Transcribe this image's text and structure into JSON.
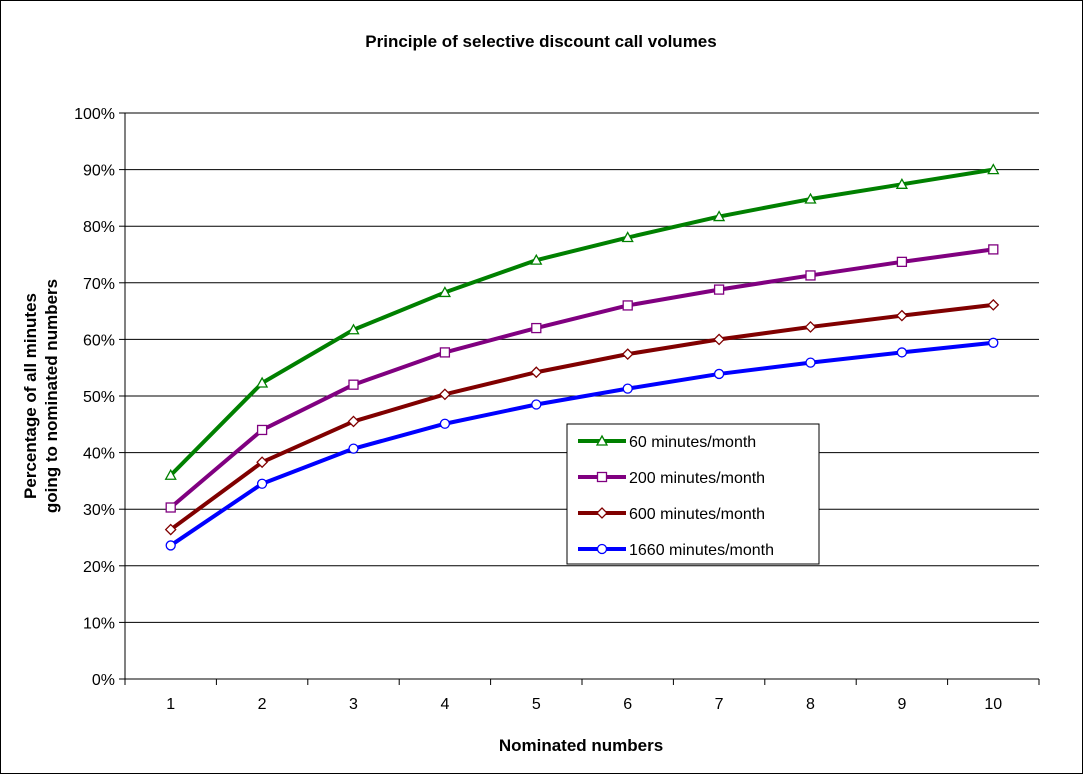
{
  "chart_data": {
    "type": "line",
    "title": "Principle of selective discount call volumes",
    "xlabel": "Nominated numbers",
    "ylabel_lines": [
      "Percentage of all minutes",
      "going to nominated numbers"
    ],
    "x": [
      1,
      2,
      3,
      4,
      5,
      6,
      7,
      8,
      9,
      10
    ],
    "x_tick_labels": [
      "1",
      "2",
      "3",
      "4",
      "5",
      "6",
      "7",
      "8",
      "9",
      "10"
    ],
    "ylim": [
      0,
      100
    ],
    "y_tick_labels": [
      "0%",
      "10%",
      "20%",
      "30%",
      "40%",
      "50%",
      "60%",
      "70%",
      "80%",
      "90%",
      "100%"
    ],
    "grid": "horizontal",
    "legend_position": "center-right",
    "series": [
      {
        "name": "60 minutes/month",
        "color": "#008000",
        "marker": "triangle",
        "values": [
          36,
          52.3,
          61.7,
          68.3,
          74,
          78,
          81.7,
          84.8,
          87.4,
          90
        ]
      },
      {
        "name": "200 minutes/month",
        "color": "#800080",
        "marker": "square",
        "values": [
          30.3,
          44,
          52,
          57.7,
          62,
          66,
          68.8,
          71.3,
          73.7,
          75.9
        ]
      },
      {
        "name": "600 minutes/month",
        "color": "#800000",
        "marker": "diamond",
        "values": [
          26.4,
          38.3,
          45.5,
          50.3,
          54.2,
          57.4,
          60,
          62.2,
          64.2,
          66.1
        ]
      },
      {
        "name": "1660 minutes/month",
        "color": "#0000ff",
        "marker": "circle",
        "values": [
          23.6,
          34.5,
          40.7,
          45.1,
          48.5,
          51.3,
          53.9,
          55.9,
          57.7,
          59.4
        ]
      }
    ]
  }
}
